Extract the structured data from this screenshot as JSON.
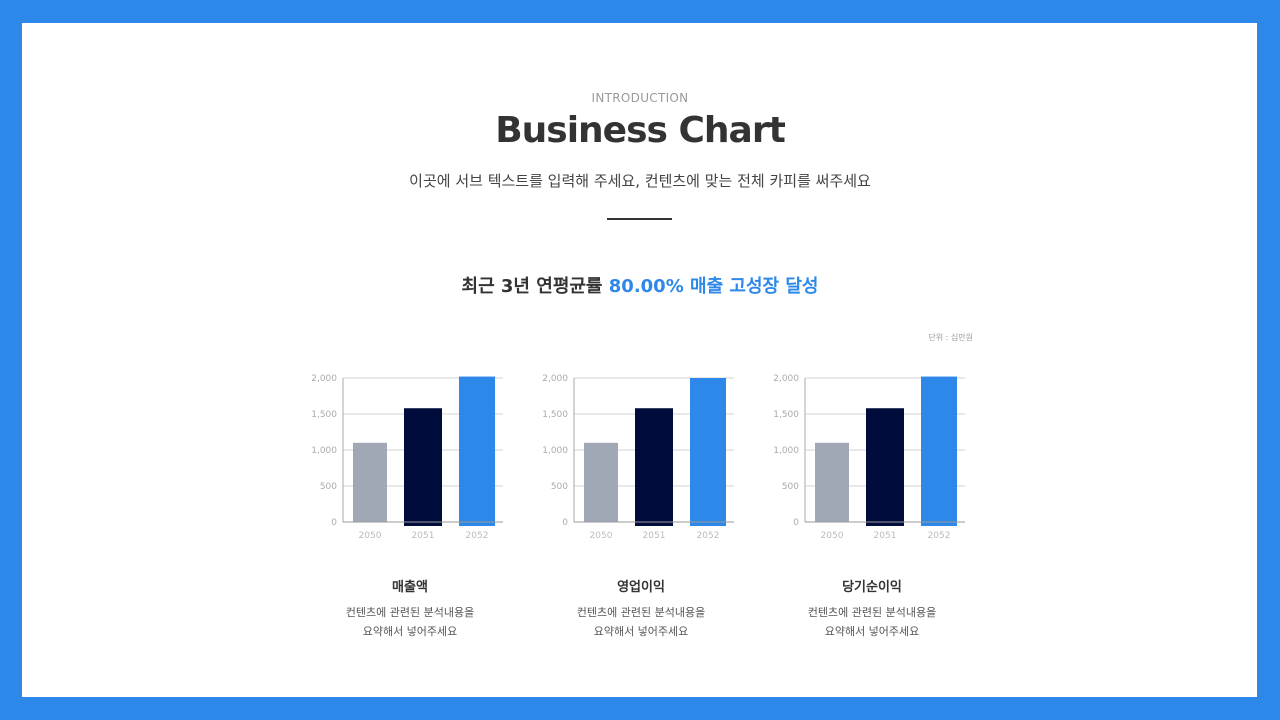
{
  "header": {
    "intro": "INTRODUCTION",
    "title": "Business Chart",
    "subtitle": "이곳에 서브 텍스트를 입력해 주세요, 컨텐츠에 맞는 전체 카피를 써주세요"
  },
  "headline": {
    "prefix": "최근 3년 연평균률 ",
    "highlight": "80.00% 매출 고성장 달성"
  },
  "unit_label": "단위 : 십만원",
  "colors": {
    "frame": "#2e88ea",
    "bar_2050": "#a0a8b6",
    "bar_2051": "#000c3c",
    "bar_2052": "#2e88ea"
  },
  "chart_data": [
    {
      "type": "bar",
      "categories": [
        "2050",
        "2051",
        "2052"
      ],
      "values": [
        1100,
        1580,
        2020
      ],
      "ylim": [
        0,
        2000
      ],
      "yticks": [
        "0",
        "500",
        "1,000",
        "1,500",
        "2,000"
      ],
      "grid": true,
      "title": "매출액",
      "description": [
        "컨텐츠에 관련된 분석내용을",
        "요약해서 넣어주세요"
      ]
    },
    {
      "type": "bar",
      "categories": [
        "2050",
        "2051",
        "2052"
      ],
      "values": [
        1100,
        1580,
        2000
      ],
      "ylim": [
        0,
        2000
      ],
      "yticks": [
        "0",
        "500",
        "1,000",
        "1,500",
        "2,000"
      ],
      "grid": true,
      "title": "영업이익",
      "description": [
        "컨텐츠에 관련된 분석내용을",
        "요약해서 넣어주세요"
      ]
    },
    {
      "type": "bar",
      "categories": [
        "2050",
        "2051",
        "2052"
      ],
      "values": [
        1100,
        1580,
        2020
      ],
      "ylim": [
        0,
        2000
      ],
      "yticks": [
        "0",
        "500",
        "1,000",
        "1,500",
        "2,000"
      ],
      "grid": true,
      "title": "당기순이익",
      "description": [
        "컨텐츠에 관련된 분석내용을",
        "요약해서 넣어주세요"
      ]
    }
  ]
}
